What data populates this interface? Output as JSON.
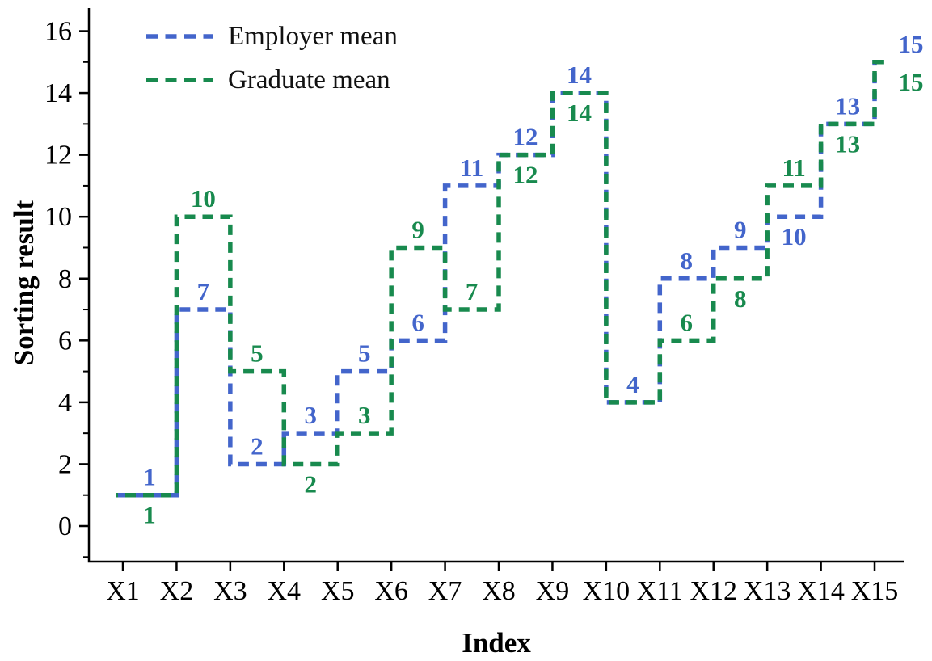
{
  "background": "#ffffff",
  "chart_data": {
    "type": "line",
    "subtype": "step-post, dashed",
    "title": "",
    "xlabel": "Index",
    "ylabel": "Sorting result",
    "categories": [
      "X1",
      "X2",
      "X3",
      "X4",
      "X5",
      "X6",
      "X7",
      "X8",
      "X9",
      "X10",
      "X11",
      "X12",
      "X13",
      "X14",
      "X15"
    ],
    "y_ticks": [
      0,
      2,
      4,
      6,
      8,
      10,
      12,
      14,
      16
    ],
    "ylim": [
      -1.2,
      16.75
    ],
    "grid": false,
    "legend_position": "top-left-inside",
    "series": [
      {
        "name": "Employer mean",
        "color": "#4365cb",
        "values": [
          1,
          7,
          2,
          3,
          5,
          6,
          11,
          12,
          14,
          4,
          8,
          9,
          10,
          13,
          15
        ],
        "label_side": [
          "above",
          "above",
          "above",
          "above",
          "above",
          "above",
          "above",
          "above",
          "above",
          "above",
          "above",
          "above",
          "below",
          "above",
          "above"
        ]
      },
      {
        "name": "Graduate mean",
        "color": "#188a4e",
        "values": [
          1,
          10,
          5,
          2,
          3,
          9,
          7,
          12,
          14,
          4,
          6,
          8,
          11,
          13,
          15
        ],
        "label_side": [
          "below",
          "above",
          "above",
          "below",
          "above",
          "above",
          "above",
          "below",
          "below",
          "above",
          "above",
          "below",
          "above",
          "below",
          "below"
        ]
      }
    ]
  }
}
